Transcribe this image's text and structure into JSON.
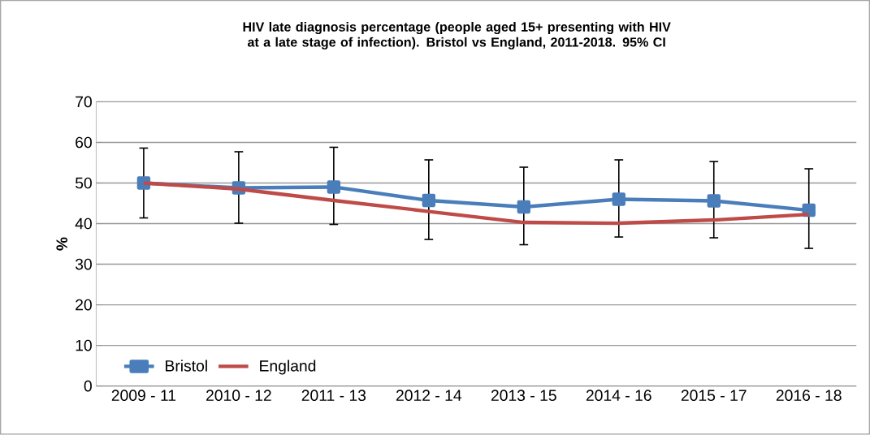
{
  "chart_data": {
    "type": "line",
    "title": "HIV late diagnosis percentage (people  aged 15+ presenting with HIV at a late stage of infection). Bristol vs England, 2011-2018. 95% CI",
    "ylabel": "%",
    "categories": [
      "2009 - 11",
      "2010 - 12",
      "2011 - 13",
      "2012 - 14",
      "2013 - 15",
      "2014 - 16",
      "2015 - 17",
      "2016 - 18"
    ],
    "series": [
      {
        "name": "Bristol",
        "color": "#4a7ebb",
        "marker": "square",
        "values": [
          50,
          48.8,
          49,
          45.7,
          44.1,
          46,
          45.6,
          43.3
        ],
        "errors": [
          [
            41.4,
            58.6
          ],
          [
            40.1,
            57.7
          ],
          [
            39.8,
            58.8
          ],
          [
            36.1,
            55.7
          ],
          [
            34.8,
            53.9
          ],
          [
            36.7,
            55.7
          ],
          [
            36.5,
            55.3
          ],
          [
            33.9,
            53.5
          ]
        ]
      },
      {
        "name": "England",
        "color": "#be4b48",
        "marker": "none",
        "values": [
          50,
          48.5,
          45.7,
          43,
          40.3,
          40.1,
          40.9,
          42.3
        ]
      }
    ],
    "ylim": [
      0,
      70
    ],
    "yticks": [
      0,
      10,
      20,
      30,
      40,
      50,
      60,
      70
    ],
    "grid": "y",
    "legend": "bottom left"
  }
}
